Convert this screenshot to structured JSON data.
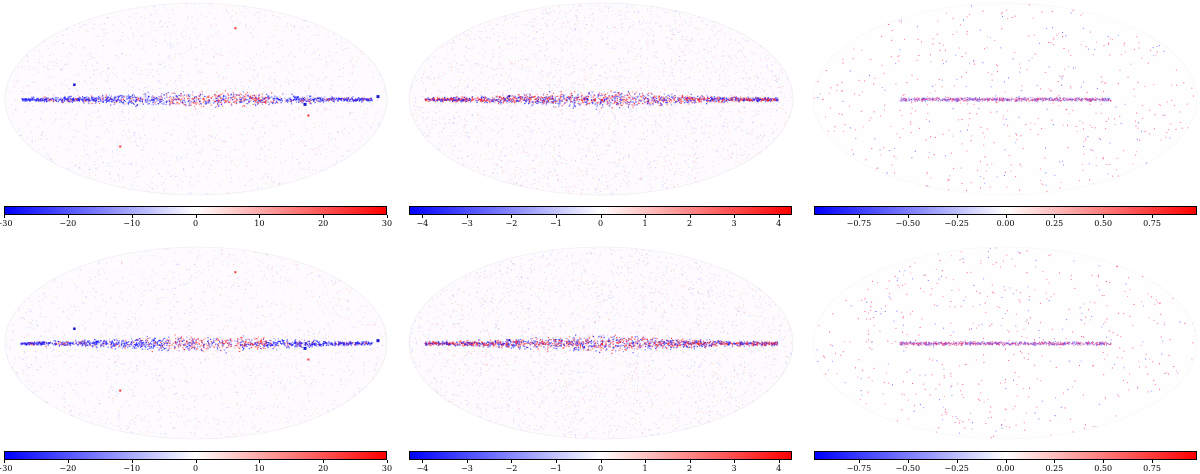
{
  "figure": {
    "panels": [
      {
        "id": "top-left",
        "colorbar": {
          "range": [
            -30,
            30
          ],
          "ticks": [
            -30,
            -20,
            -10,
            0,
            10,
            20,
            30
          ],
          "labels": [
            "−30",
            "−20",
            "−10",
            "0",
            "10",
            "20",
            "30"
          ]
        }
      },
      {
        "id": "top-middle",
        "colorbar": {
          "range": [
            -4.3,
            4.3
          ],
          "ticks": [
            -4,
            -3,
            -2,
            -1,
            0,
            1,
            2,
            3,
            4
          ],
          "labels": [
            "−4",
            "−3",
            "−2",
            "−1",
            "0",
            "1",
            "2",
            "3",
            "4"
          ]
        }
      },
      {
        "id": "top-right",
        "colorbar": {
          "range": [
            -0.98,
            0.98
          ],
          "ticks": [
            -0.75,
            -0.5,
            -0.25,
            0,
            0.25,
            0.5,
            0.75
          ],
          "labels": [
            "−0.75",
            "−0.50",
            "−0.25",
            "0.00",
            "0.25",
            "0.50",
            "0.75"
          ]
        }
      },
      {
        "id": "bottom-left",
        "colorbar": {
          "range": [
            -30,
            30
          ],
          "ticks": [
            -30,
            -20,
            -10,
            0,
            10,
            20,
            30
          ],
          "labels": [
            "−30",
            "−20",
            "−10",
            "0",
            "10",
            "20",
            "30"
          ]
        }
      },
      {
        "id": "bottom-middle",
        "colorbar": {
          "range": [
            -4.3,
            4.3
          ],
          "ticks": [
            -4,
            -3,
            -2,
            -1,
            0,
            1,
            2,
            3,
            4
          ],
          "labels": [
            "−4",
            "−3",
            "−2",
            "−1",
            "0",
            "1",
            "2",
            "3",
            "4"
          ]
        }
      },
      {
        "id": "bottom-right",
        "colorbar": {
          "range": [
            -0.98,
            0.98
          ],
          "ticks": [
            -0.75,
            -0.5,
            -0.25,
            0,
            0.25,
            0.5,
            0.75
          ],
          "labels": [
            "−0.75",
            "−0.50",
            "−0.25",
            "0.00",
            "0.25",
            "0.50",
            "0.75"
          ]
        }
      }
    ],
    "colormap": {
      "low": "#0000ff",
      "mid": "#ffffff",
      "high": "#ff0000"
    },
    "map_background": "#fdfbfe"
  }
}
